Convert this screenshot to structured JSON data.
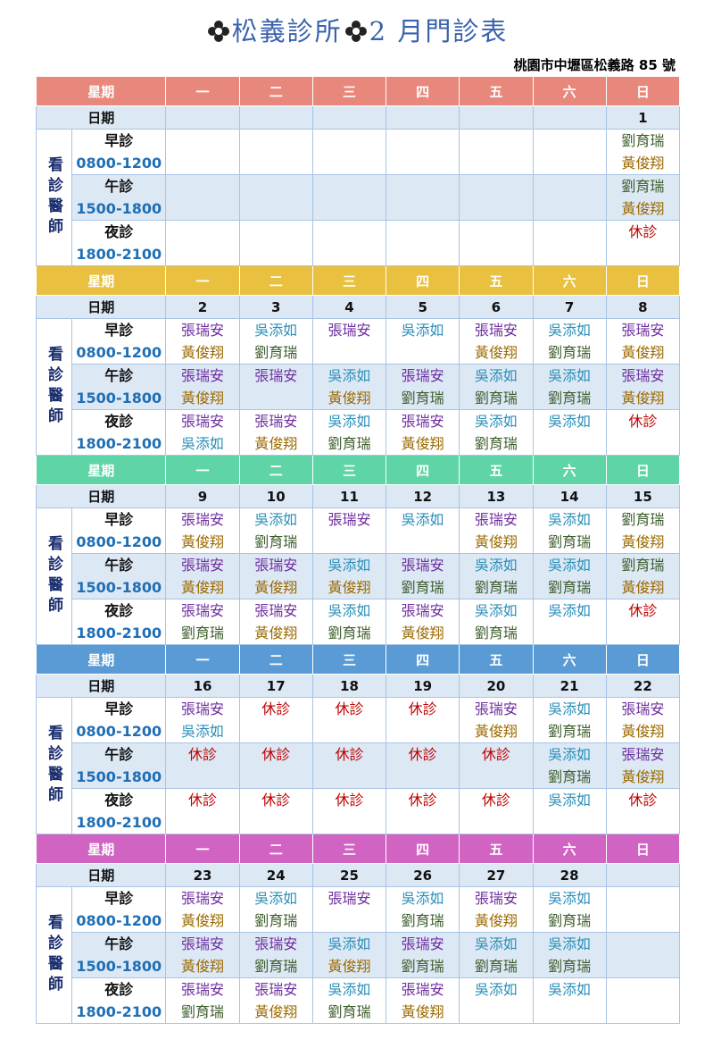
{
  "header": {
    "title": "松義診所",
    "subtitle": "2 月門診表",
    "address": "桃園市中壢區松義路 85 號"
  },
  "table": {
    "weekday_header": [
      "星期",
      "一",
      "二",
      "三",
      "四",
      "五",
      "六",
      "日"
    ],
    "date_label": "日期",
    "doctor_label": "看診醫師",
    "sessions": [
      {
        "name": "早診",
        "time": "0800-1200"
      },
      {
        "name": "午診",
        "time": "1500-1800"
      },
      {
        "name": "夜診",
        "time": "1800-2100"
      }
    ],
    "name_colors": {
      "張瑞安": "#7030a0",
      "黃俊翔": "#9c6a00",
      "吳添如": "#2a8fb8",
      "劉育瑞": "#3d5e2c",
      "休診": "#c00000"
    },
    "weeks": [
      {
        "color": "#e8887c",
        "dates": [
          null,
          null,
          null,
          null,
          null,
          null,
          1
        ],
        "slots": [
          [
            [],
            [],
            [],
            [],
            [],
            [],
            [
              "劉育瑞",
              "黃俊翔"
            ]
          ],
          [
            [],
            [],
            [],
            [],
            [],
            [],
            [
              "劉育瑞",
              "黃俊翔"
            ]
          ],
          [
            [],
            [],
            [],
            [],
            [],
            [],
            [
              "休診"
            ]
          ]
        ]
      },
      {
        "color": "#e9c03f",
        "dates": [
          2,
          3,
          4,
          5,
          6,
          7,
          8
        ],
        "slots": [
          [
            [
              "張瑞安",
              "黃俊翔"
            ],
            [
              "吳添如",
              "劉育瑞"
            ],
            [
              "張瑞安"
            ],
            [
              "吳添如"
            ],
            [
              "張瑞安",
              "黃俊翔"
            ],
            [
              "吳添如",
              "劉育瑞"
            ],
            [
              "張瑞安",
              "黃俊翔"
            ]
          ],
          [
            [
              "張瑞安",
              "黃俊翔"
            ],
            [
              "張瑞安"
            ],
            [
              "吳添如",
              "黃俊翔"
            ],
            [
              "張瑞安",
              "劉育瑞"
            ],
            [
              "吳添如",
              "劉育瑞"
            ],
            [
              "吳添如",
              "劉育瑞"
            ],
            [
              "張瑞安",
              "黃俊翔"
            ]
          ],
          [
            [
              "張瑞安",
              "吳添如"
            ],
            [
              "張瑞安",
              "黃俊翔"
            ],
            [
              "吳添如",
              "劉育瑞"
            ],
            [
              "張瑞安",
              "黃俊翔"
            ],
            [
              "吳添如",
              "劉育瑞"
            ],
            [
              "吳添如"
            ],
            [
              "休診"
            ]
          ]
        ]
      },
      {
        "color": "#5fd4a6",
        "dates": [
          9,
          10,
          11,
          12,
          13,
          14,
          15
        ],
        "slots": [
          [
            [
              "張瑞安",
              "黃俊翔"
            ],
            [
              "吳添如",
              "劉育瑞"
            ],
            [
              "張瑞安"
            ],
            [
              "吳添如"
            ],
            [
              "張瑞安",
              "黃俊翔"
            ],
            [
              "吳添如",
              "劉育瑞"
            ],
            [
              "劉育瑞",
              "黃俊翔"
            ]
          ],
          [
            [
              "張瑞安",
              "黃俊翔"
            ],
            [
              "張瑞安",
              "黃俊翔"
            ],
            [
              "吳添如",
              "黃俊翔"
            ],
            [
              "張瑞安",
              "劉育瑞"
            ],
            [
              "吳添如",
              "劉育瑞"
            ],
            [
              "吳添如",
              "劉育瑞"
            ],
            [
              "劉育瑞",
              "黃俊翔"
            ]
          ],
          [
            [
              "張瑞安",
              "劉育瑞"
            ],
            [
              "張瑞安",
              "黃俊翔"
            ],
            [
              "吳添如",
              "劉育瑞"
            ],
            [
              "張瑞安",
              "黃俊翔"
            ],
            [
              "吳添如",
              "劉育瑞"
            ],
            [
              "吳添如"
            ],
            [
              "休診"
            ]
          ]
        ]
      },
      {
        "color": "#5b9bd5",
        "dates": [
          16,
          17,
          18,
          19,
          20,
          21,
          22
        ],
        "slots": [
          [
            [
              "張瑞安",
              "吳添如"
            ],
            [
              "休診"
            ],
            [
              "休診"
            ],
            [
              "休診"
            ],
            [
              "張瑞安",
              "黃俊翔"
            ],
            [
              "吳添如",
              "劉育瑞"
            ],
            [
              "張瑞安",
              "黃俊翔"
            ]
          ],
          [
            [
              "休診"
            ],
            [
              "休診"
            ],
            [
              "休診"
            ],
            [
              "休診"
            ],
            [
              "休診"
            ],
            [
              "吳添如",
              "劉育瑞"
            ],
            [
              "張瑞安",
              "黃俊翔"
            ]
          ],
          [
            [
              "休診"
            ],
            [
              "休診"
            ],
            [
              "休診"
            ],
            [
              "休診"
            ],
            [
              "休診"
            ],
            [
              "吳添如"
            ],
            [
              "休診"
            ]
          ]
        ]
      },
      {
        "color": "#d163c2",
        "dates": [
          23,
          24,
          25,
          26,
          27,
          28,
          null
        ],
        "slots": [
          [
            [
              "張瑞安",
              "黃俊翔"
            ],
            [
              "吳添如",
              "劉育瑞"
            ],
            [
              "張瑞安"
            ],
            [
              "吳添如",
              "劉育瑞"
            ],
            [
              "張瑞安",
              "黃俊翔"
            ],
            [
              "吳添如",
              "劉育瑞"
            ],
            []
          ],
          [
            [
              "張瑞安",
              "黃俊翔"
            ],
            [
              "張瑞安",
              "劉育瑞"
            ],
            [
              "吳添如",
              "黃俊翔"
            ],
            [
              "張瑞安",
              "劉育瑞"
            ],
            [
              "吳添如",
              "劉育瑞"
            ],
            [
              "吳添如",
              "劉育瑞"
            ],
            []
          ],
          [
            [
              "張瑞安",
              "劉育瑞"
            ],
            [
              "張瑞安",
              "黃俊翔"
            ],
            [
              "吳添如",
              "劉育瑞"
            ],
            [
              "張瑞安",
              "黃俊翔"
            ],
            [
              "吳添如"
            ],
            [
              "吳添如"
            ],
            []
          ]
        ]
      }
    ]
  }
}
